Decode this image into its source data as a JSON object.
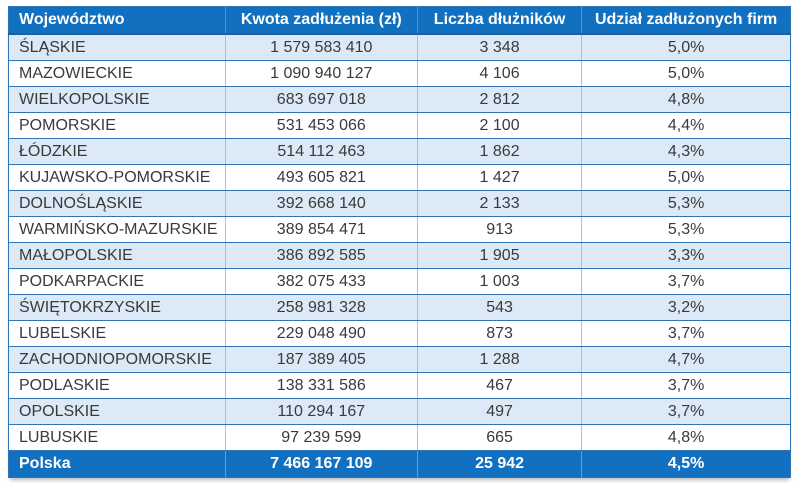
{
  "table": {
    "columns": [
      {
        "label": "Województwo"
      },
      {
        "label": "Kwota zadłużenia (zł)"
      },
      {
        "label": "Liczba dłużników"
      },
      {
        "label": "Udział zadłużonych firm"
      }
    ],
    "rows": [
      {
        "name": "ŚLĄSKIE",
        "amount": "1 579 583 410",
        "debtors": "3 348",
        "share": "5,0%"
      },
      {
        "name": "MAZOWIECKIE",
        "amount": "1 090 940 127",
        "debtors": "4 106",
        "share": "5,0%"
      },
      {
        "name": "WIELKOPOLSKIE",
        "amount": "683 697 018",
        "debtors": "2 812",
        "share": "4,8%"
      },
      {
        "name": "POMORSKIE",
        "amount": "531 453 066",
        "debtors": "2 100",
        "share": "4,4%"
      },
      {
        "name": "ŁÓDZKIE",
        "amount": "514 112 463",
        "debtors": "1 862",
        "share": "4,3%"
      },
      {
        "name": "KUJAWSKO-POMORSKIE",
        "amount": "493 605 821",
        "debtors": "1 427",
        "share": "5,0%"
      },
      {
        "name": "DOLNOŚLĄSKIE",
        "amount": "392 668 140",
        "debtors": "2 133",
        "share": "5,3%"
      },
      {
        "name": "WARMIŃSKO-MAZURSKIE",
        "amount": "389 854 471",
        "debtors": "913",
        "share": "5,3%"
      },
      {
        "name": "MAŁOPOLSKIE",
        "amount": "386 892 585",
        "debtors": "1 905",
        "share": "3,3%"
      },
      {
        "name": "PODKARPACKIE",
        "amount": "382 075 433",
        "debtors": "1 003",
        "share": "3,7%"
      },
      {
        "name": "ŚWIĘTOKRZYSKIE",
        "amount": "258 981 328",
        "debtors": "543",
        "share": "3,2%"
      },
      {
        "name": "LUBELSKIE",
        "amount": "229 048 490",
        "debtors": "873",
        "share": "3,7%"
      },
      {
        "name": "ZACHODNIOPOMORSKIE",
        "amount": "187 389 405",
        "debtors": "1 288",
        "share": "4,7%"
      },
      {
        "name": "PODLASKIE",
        "amount": "138 331 586",
        "debtors": "467",
        "share": "3,7%"
      },
      {
        "name": "OPOLSKIE",
        "amount": "110 294 167",
        "debtors": "497",
        "share": "3,7%"
      },
      {
        "name": "LUBUSKIE",
        "amount": "97 239 599",
        "debtors": "665",
        "share": "4,8%"
      }
    ],
    "footer": {
      "name": "Polska",
      "amount": "7 466 167 109",
      "debtors": "25 942",
      "share": "4,5%"
    }
  },
  "colors": {
    "header_bg": "#1170c0",
    "footer_bg": "#1170c0",
    "band_row_bg": "#dce9f6",
    "plain_row_bg": "#ffffff",
    "grid_dark": "#2e75b6",
    "grid_light": "#9dc3e6",
    "header_text": "#ffffff",
    "body_text": "#3a3a3a"
  }
}
